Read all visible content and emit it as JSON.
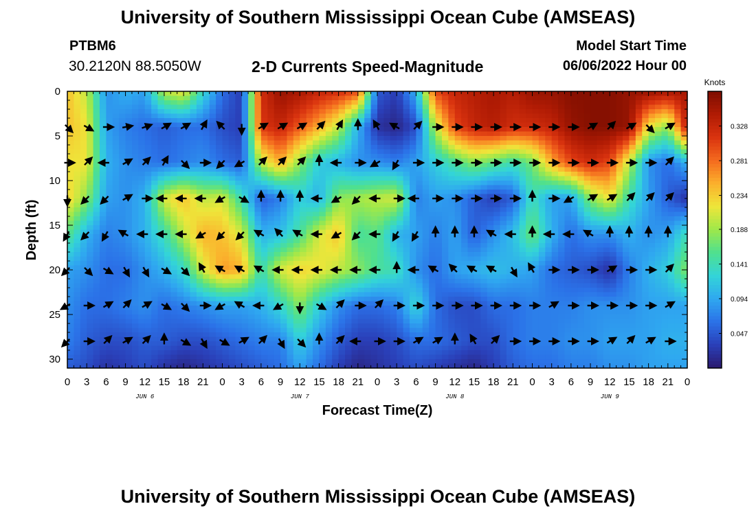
{
  "header": {
    "title": "University of Southern Mississippi Ocean Cube (AMSEAS)",
    "station": "PTBM6",
    "coords": "30.2120N  88.5050W",
    "subtitle": "2-D Currents Speed-Magnitude",
    "start_label": "Model Start Time",
    "start_value": "06/06/2022 Hour 00"
  },
  "footer": {
    "title": "University of Southern Mississippi Ocean Cube (AMSEAS)"
  },
  "colors": {
    "colormap": [
      "#2b1a6e",
      "#2a3fb8",
      "#2b72e8",
      "#2fa8f0",
      "#33d4d8",
      "#4fe08f",
      "#9ee84a",
      "#eee63a",
      "#fbb02c",
      "#f46a1e",
      "#d9330f",
      "#b01b04",
      "#7e0e00"
    ]
  },
  "chart_data": {
    "type": "heatmap",
    "title": "2-D Currents Speed-Magnitude",
    "xlabel": "Forecast Time(Z)",
    "ylabel": "Depth (ft)",
    "x_tick_labels": [
      "0",
      "3",
      "6",
      "9",
      "12",
      "15",
      "18",
      "21",
      "0",
      "3",
      "6",
      "9",
      "12",
      "15",
      "18",
      "21",
      "0",
      "3",
      "6",
      "9",
      "12",
      "15",
      "18",
      "21",
      "0",
      "3",
      "6",
      "9",
      "12",
      "15",
      "18",
      "21",
      "0"
    ],
    "x_hours_range": [
      0,
      96
    ],
    "day_labels": [
      {
        "label": "JUN 6",
        "hour": 12
      },
      {
        "label": "JUN 7",
        "hour": 36
      },
      {
        "label": "JUN 8",
        "hour": 60
      },
      {
        "label": "JUN 9",
        "hour": 84
      }
    ],
    "y_ticks": [
      0,
      5,
      10,
      15,
      20,
      25,
      30
    ],
    "ylim": [
      0,
      31
    ],
    "colorbar": {
      "unit": "Knots",
      "range": [
        0,
        0.375
      ],
      "ticks": [
        0.047,
        0.094,
        0.141,
        0.188,
        0.234,
        0.281,
        0.328
      ]
    },
    "speed_grid": {
      "hours": [
        0,
        3,
        6,
        9,
        12,
        15,
        18,
        21,
        24,
        27,
        30,
        33,
        36,
        39,
        42,
        45,
        48,
        51,
        54,
        57,
        60,
        63,
        66,
        69,
        72,
        75,
        78,
        81,
        84,
        87,
        90,
        93,
        96
      ],
      "depths": [
        0,
        4,
        8,
        12,
        16,
        20,
        24,
        28,
        31
      ],
      "values": [
        [
          0.24,
          0.2,
          0.08,
          0.1,
          0.09,
          0.2,
          0.22,
          0.13,
          0.06,
          0.03,
          0.32,
          0.36,
          0.35,
          0.33,
          0.32,
          0.3,
          0.05,
          0.03,
          0.1,
          0.3,
          0.33,
          0.34,
          0.35,
          0.34,
          0.36,
          0.36,
          0.37,
          0.37,
          0.37,
          0.36,
          0.36,
          0.35,
          0.35
        ],
        [
          0.24,
          0.22,
          0.09,
          0.07,
          0.06,
          0.05,
          0.06,
          0.06,
          0.04,
          0.03,
          0.31,
          0.33,
          0.29,
          0.25,
          0.2,
          0.1,
          0.02,
          0.01,
          0.04,
          0.2,
          0.3,
          0.33,
          0.34,
          0.32,
          0.32,
          0.33,
          0.36,
          0.37,
          0.37,
          0.36,
          0.22,
          0.18,
          0.34
        ],
        [
          0.22,
          0.22,
          0.1,
          0.08,
          0.07,
          0.06,
          0.07,
          0.08,
          0.06,
          0.05,
          0.2,
          0.25,
          0.18,
          0.12,
          0.1,
          0.08,
          0.08,
          0.07,
          0.09,
          0.12,
          0.15,
          0.18,
          0.16,
          0.14,
          0.17,
          0.25,
          0.3,
          0.32,
          0.3,
          0.2,
          0.08,
          0.06,
          0.1
        ],
        [
          0.23,
          0.18,
          0.09,
          0.08,
          0.1,
          0.21,
          0.24,
          0.2,
          0.21,
          0.14,
          0.05,
          0.07,
          0.12,
          0.1,
          0.18,
          0.19,
          0.2,
          0.21,
          0.07,
          0.09,
          0.08,
          0.05,
          0.03,
          0.05,
          0.14,
          0.09,
          0.09,
          0.18,
          0.22,
          0.14,
          0.09,
          0.05,
          0.02
        ],
        [
          0.16,
          0.1,
          0.07,
          0.08,
          0.1,
          0.14,
          0.2,
          0.25,
          0.24,
          0.21,
          0.1,
          0.11,
          0.15,
          0.21,
          0.24,
          0.15,
          0.16,
          0.1,
          0.09,
          0.07,
          0.09,
          0.05,
          0.08,
          0.11,
          0.17,
          0.1,
          0.06,
          0.08,
          0.08,
          0.1,
          0.08,
          0.09,
          0.14
        ],
        [
          0.09,
          0.08,
          0.06,
          0.06,
          0.08,
          0.1,
          0.13,
          0.21,
          0.26,
          0.25,
          0.14,
          0.21,
          0.23,
          0.22,
          0.2,
          0.18,
          0.15,
          0.14,
          0.08,
          0.06,
          0.09,
          0.1,
          0.11,
          0.1,
          0.09,
          0.06,
          0.05,
          0.04,
          0.02,
          0.07,
          0.1,
          0.12,
          0.18
        ],
        [
          0.08,
          0.06,
          0.06,
          0.07,
          0.08,
          0.06,
          0.07,
          0.08,
          0.09,
          0.09,
          0.1,
          0.13,
          0.18,
          0.12,
          0.08,
          0.06,
          0.06,
          0.07,
          0.13,
          0.06,
          0.04,
          0.04,
          0.06,
          0.06,
          0.07,
          0.07,
          0.07,
          0.08,
          0.08,
          0.08,
          0.09,
          0.09,
          0.09
        ],
        [
          0.07,
          0.05,
          0.04,
          0.04,
          0.05,
          0.05,
          0.04,
          0.04,
          0.05,
          0.06,
          0.07,
          0.07,
          0.12,
          0.08,
          0.05,
          0.03,
          0.03,
          0.04,
          0.06,
          0.06,
          0.05,
          0.04,
          0.04,
          0.06,
          0.07,
          0.07,
          0.08,
          0.08,
          0.09,
          0.09,
          0.09,
          0.1,
          0.1
        ],
        [
          0.05,
          0.04,
          0.02,
          0.03,
          0.04,
          0.02,
          0.01,
          0.02,
          0.03,
          0.04,
          0.05,
          0.06,
          0.09,
          0.06,
          0.03,
          0.01,
          0.02,
          0.03,
          0.04,
          0.03,
          0.02,
          0.01,
          0.03,
          0.05,
          0.06,
          0.06,
          0.07,
          0.07,
          0.08,
          0.08,
          0.09,
          0.09,
          0.09
        ]
      ]
    },
    "vectors": {
      "hours": [
        0,
        3,
        6,
        9,
        12,
        15,
        18,
        21,
        24,
        27,
        30,
        33,
        36,
        39,
        42,
        45,
        48,
        51,
        54,
        57,
        60,
        63,
        66,
        69,
        72,
        75,
        78,
        81,
        84,
        87,
        90,
        93
      ],
      "depths": [
        4,
        8,
        12,
        16,
        20,
        24,
        28
      ],
      "directions_deg": [
        [
          135,
          120,
          90,
          80,
          70,
          60,
          60,
          30,
          315,
          180,
          60,
          60,
          60,
          45,
          30,
          0,
          330,
          300,
          45,
          90,
          90,
          90,
          90,
          90,
          90,
          90,
          90,
          60,
          45,
          60,
          135,
          60
        ],
        [
          90,
          45,
          270,
          60,
          45,
          30,
          135,
          90,
          225,
          240,
          45,
          45,
          45,
          0,
          270,
          90,
          240,
          210,
          90,
          90,
          90,
          90,
          90,
          90,
          90,
          90,
          90,
          90,
          90,
          90,
          90,
          45
        ],
        [
          180,
          225,
          225,
          60,
          90,
          270,
          270,
          270,
          240,
          120,
          0,
          0,
          0,
          270,
          240,
          225,
          270,
          90,
          270,
          90,
          90,
          90,
          90,
          90,
          0,
          90,
          240,
          60,
          60,
          45,
          45,
          45
        ],
        [
          210,
          225,
          210,
          300,
          270,
          270,
          270,
          240,
          225,
          225,
          300,
          315,
          300,
          270,
          240,
          225,
          270,
          210,
          210,
          0,
          0,
          0,
          300,
          270,
          0,
          270,
          270,
          300,
          0,
          0,
          0,
          0
        ],
        [
          225,
          135,
          120,
          150,
          150,
          120,
          135,
          330,
          300,
          300,
          300,
          270,
          270,
          270,
          270,
          270,
          270,
          0,
          270,
          300,
          315,
          300,
          300,
          150,
          330,
          90,
          90,
          90,
          60,
          90,
          90,
          45
        ],
        [
          240,
          90,
          60,
          45,
          60,
          120,
          135,
          90,
          240,
          300,
          270,
          240,
          180,
          120,
          45,
          90,
          45,
          90,
          90,
          90,
          90,
          90,
          90,
          90,
          90,
          60,
          90,
          90,
          90,
          90,
          90,
          60
        ],
        [
          225,
          90,
          45,
          60,
          45,
          0,
          120,
          150,
          120,
          60,
          45,
          150,
          135,
          0,
          45,
          270,
          90,
          90,
          60,
          60,
          0,
          330,
          45,
          90,
          90,
          90,
          90,
          90,
          60,
          45,
          60,
          90
        ]
      ]
    }
  }
}
